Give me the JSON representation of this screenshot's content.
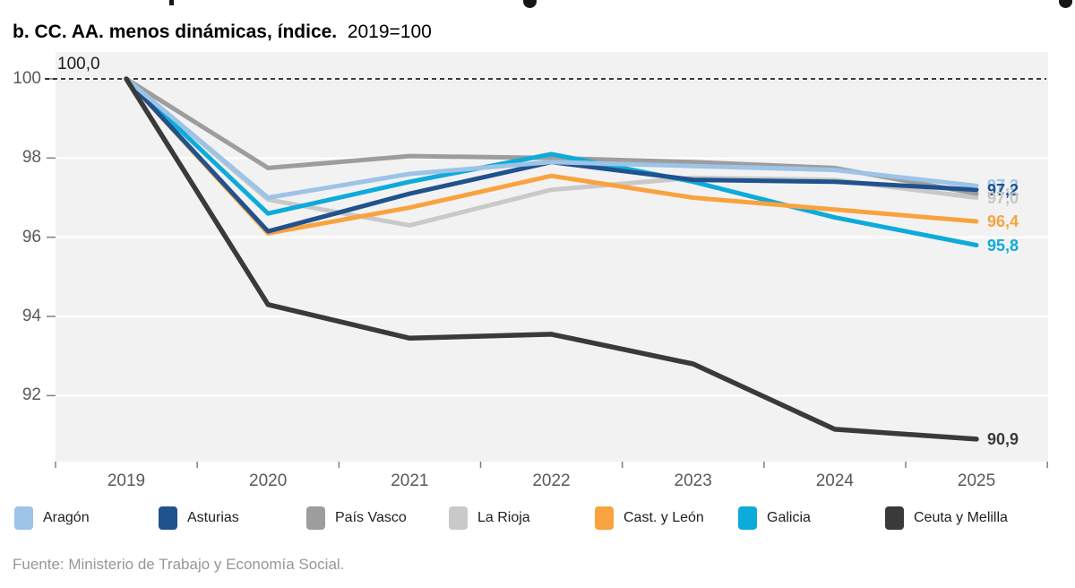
{
  "title": {
    "bold": "b. CC. AA. menos dinámicas, índice.",
    "normal": "2019=100"
  },
  "source": "Fuente: Ministerio de Trabajo y Economía Social.",
  "annotations": {
    "start_label": "100,0"
  },
  "y_axis": {
    "ticks": [
      "100",
      "98",
      "96",
      "94",
      "92"
    ],
    "tick_values": [
      100,
      98,
      96,
      94,
      92
    ]
  },
  "x_axis": {
    "ticks": [
      "2019",
      "2020",
      "2021",
      "2022",
      "2023",
      "2024",
      "2025"
    ]
  },
  "colors": {
    "plot_background": "#f2f2f2",
    "gridline": "#ffffff",
    "baseline": "#000000",
    "axis_text": "#595959",
    "tick": "#808080"
  },
  "end_labels": [
    {
      "text": "97,3",
      "value": 97.3,
      "color": "#9dc3e6"
    },
    {
      "text": "97,2",
      "value": 97.2,
      "color": "#20528d"
    },
    {
      "text": "97,0",
      "value": 97.0,
      "color": "#c6c6c6"
    },
    {
      "text": "96,4",
      "value": 96.4,
      "color": "#f8a33f"
    },
    {
      "text": "95,8",
      "value": 95.8,
      "color": "#0dabda"
    },
    {
      "text": "90,9",
      "value": 90.9,
      "color": "#3a3a3a"
    }
  ],
  "legend": [
    {
      "label": "Aragón",
      "color": "#9dc3e6"
    },
    {
      "label": "Asturias",
      "color": "#20528d"
    },
    {
      "label": "País Vasco",
      "color": "#9d9d9d"
    },
    {
      "label": "La Rioja",
      "color": "#c9c9c9"
    },
    {
      "label": "Cast. y León",
      "color": "#f8a33f"
    },
    {
      "label": "Galicia",
      "color": "#0dabda"
    },
    {
      "label": "Ceuta y Melilla",
      "color": "#3a3a3a"
    }
  ],
  "chart_data": {
    "type": "line",
    "title": "b. CC. AA. menos dinámicas, índice. 2019=100",
    "x": [
      2019,
      2020,
      2021,
      2022,
      2023,
      2024,
      2025
    ],
    "ylim": [
      90.3,
      100.7
    ],
    "grid": true,
    "baseline": {
      "value": 100,
      "style": "dashed",
      "label": "100,0"
    },
    "legend_position": "bottom",
    "series": [
      {
        "name": "Aragón",
        "color": "#9dc3e6",
        "values": [
          100,
          97.0,
          97.6,
          97.9,
          97.8,
          97.7,
          97.3
        ]
      },
      {
        "name": "Asturias",
        "color": "#20528d",
        "values": [
          100,
          96.15,
          97.1,
          97.9,
          97.45,
          97.4,
          97.2
        ]
      },
      {
        "name": "País Vasco",
        "color": "#9d9d9d",
        "values": [
          100,
          97.75,
          98.05,
          98.0,
          97.9,
          97.75,
          97.1
        ]
      },
      {
        "name": "La Rioja",
        "color": "#c9c9c9",
        "values": [
          100,
          96.95,
          96.3,
          97.2,
          97.5,
          97.45,
          97.0
        ]
      },
      {
        "name": "Cast. y León",
        "color": "#f8a33f",
        "values": [
          100,
          96.1,
          96.75,
          97.55,
          97.0,
          96.7,
          96.4
        ]
      },
      {
        "name": "Galicia",
        "color": "#0dabda",
        "values": [
          100,
          96.6,
          97.4,
          98.1,
          97.4,
          96.5,
          95.8
        ]
      },
      {
        "name": "Ceuta y Melilla",
        "color": "#3a3a3a",
        "values": [
          100,
          94.3,
          93.45,
          93.55,
          92.8,
          91.15,
          90.9
        ]
      }
    ],
    "draw_order": [
      "La Rioja",
      "País Vasco",
      "Galicia",
      "Cast. y León",
      "Asturias",
      "Aragón",
      "Ceuta y Melilla"
    ]
  }
}
